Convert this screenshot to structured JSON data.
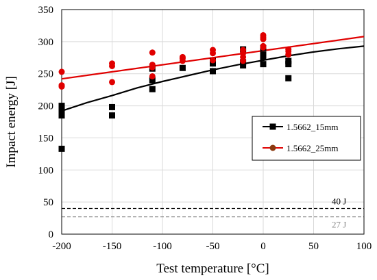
{
  "chart_data": {
    "type": "scatter",
    "xlabel": "Test temperature [°C]",
    "ylabel": "Impact energy [J]",
    "xlim": [
      -200,
      100
    ],
    "ylim": [
      0,
      350
    ],
    "xticks": [
      -200,
      -150,
      -100,
      -50,
      0,
      50,
      100
    ],
    "yticks": [
      0,
      50,
      100,
      150,
      200,
      250,
      300,
      350
    ],
    "grid": "major",
    "legend_position": "middle-right",
    "series": [
      {
        "name": "1.5662_15mm",
        "color": "#000000",
        "marker": "square",
        "points": [
          [
            -200,
            133
          ],
          [
            -200,
            185
          ],
          [
            -200,
            190
          ],
          [
            -200,
            196
          ],
          [
            -200,
            200
          ],
          [
            -150,
            185
          ],
          [
            -150,
            198
          ],
          [
            -110,
            226
          ],
          [
            -110,
            240
          ],
          [
            -110,
            258
          ],
          [
            -80,
            259
          ],
          [
            -50,
            254
          ],
          [
            -50,
            266
          ],
          [
            -50,
            270
          ],
          [
            -20,
            263
          ],
          [
            -20,
            268
          ],
          [
            -20,
            288
          ],
          [
            0,
            265
          ],
          [
            0,
            276
          ],
          [
            0,
            280
          ],
          [
            0,
            290
          ],
          [
            25,
            243
          ],
          [
            25,
            265
          ],
          [
            25,
            270
          ]
        ],
        "trend": [
          [
            -200,
            192
          ],
          [
            -175,
            205
          ],
          [
            -150,
            216
          ],
          [
            -125,
            228
          ],
          [
            -100,
            238
          ],
          [
            -75,
            247
          ],
          [
            -50,
            256
          ],
          [
            -25,
            264
          ],
          [
            0,
            271
          ],
          [
            25,
            278
          ],
          [
            50,
            284
          ],
          [
            75,
            289
          ],
          [
            100,
            293
          ]
        ]
      },
      {
        "name": "1.5662_25mm",
        "color": "#e00000",
        "marker": "circle",
        "points": [
          [
            -200,
            230
          ],
          [
            -200,
            232
          ],
          [
            -200,
            253
          ],
          [
            -150,
            237
          ],
          [
            -150,
            262
          ],
          [
            -150,
            266
          ],
          [
            -110,
            246
          ],
          [
            -110,
            260
          ],
          [
            -110,
            264
          ],
          [
            -110,
            283
          ],
          [
            -80,
            270
          ],
          [
            -80,
            274
          ],
          [
            -80,
            276
          ],
          [
            -50,
            271
          ],
          [
            -50,
            282
          ],
          [
            -50,
            287
          ],
          [
            -20,
            270
          ],
          [
            -20,
            276
          ],
          [
            -20,
            282
          ],
          [
            -20,
            287
          ],
          [
            0,
            291
          ],
          [
            0,
            293
          ],
          [
            0,
            304
          ],
          [
            0,
            307
          ],
          [
            0,
            310
          ],
          [
            25,
            280
          ],
          [
            25,
            285
          ],
          [
            25,
            288
          ]
        ],
        "trend": [
          [
            -200,
            242
          ],
          [
            100,
            308
          ]
        ]
      }
    ],
    "reference_lines": [
      {
        "label": "40 J",
        "value": 40,
        "style": "dashed",
        "color": "#000000"
      },
      {
        "label": "27 J",
        "value": 27,
        "style": "dashed",
        "color": "#8c8c8c"
      }
    ]
  }
}
